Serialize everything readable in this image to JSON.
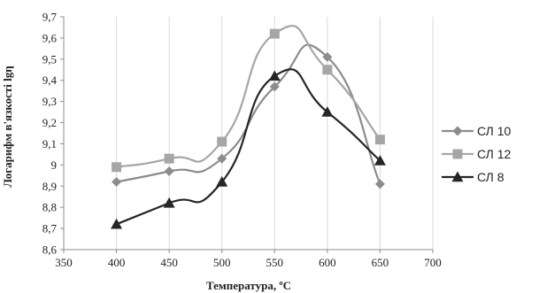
{
  "chart_data": {
    "type": "line",
    "title": "",
    "xlabel": "Температура, ºС",
    "ylabel": "Логарифм в'язкості lgη",
    "x_ticks": [
      "350",
      "400",
      "450",
      "500",
      "550",
      "600",
      "650",
      "700"
    ],
    "y_ticks": [
      "8,6",
      "8,7",
      "8,8",
      "8,9",
      "9",
      "9,1",
      "9,2",
      "9,3",
      "9,4",
      "9,5",
      "9,6",
      "9,7"
    ],
    "xlim": [
      350,
      700
    ],
    "ylim": [
      8.6,
      9.7
    ],
    "grid": "vertical",
    "smooth": true,
    "legend_position": "right",
    "x": [
      400,
      450,
      500,
      550,
      600,
      650
    ],
    "series": [
      {
        "name": "СЛ 10",
        "marker": "diamond",
        "color": "#8c8c8c",
        "values": [
          8.92,
          8.97,
          9.03,
          9.37,
          9.51,
          8.91
        ]
      },
      {
        "name": "СЛ 12",
        "marker": "square",
        "color": "#a6a6a6",
        "values": [
          8.99,
          9.03,
          9.11,
          9.62,
          9.45,
          9.12
        ]
      },
      {
        "name": "СЛ 8",
        "marker": "triangle",
        "color": "#262626",
        "values": [
          8.72,
          8.82,
          8.92,
          9.42,
          9.25,
          9.02
        ]
      }
    ]
  }
}
